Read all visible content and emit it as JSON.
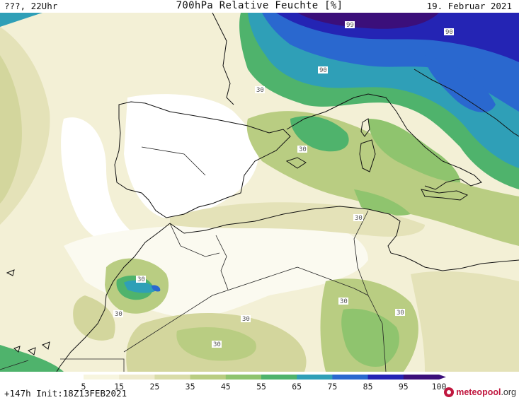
{
  "header": {
    "left": "???, 22Uhr",
    "title": "700hPa Relative Feuchte [%]",
    "date": "19. Februar 2021"
  },
  "footer": {
    "run_info": "+147h Init:18Z13FEB2021",
    "brand_part1": "meteo",
    "brand_part2": "pool",
    "brand_part3": ".org"
  },
  "colorbar": {
    "labels": [
      "5",
      "15",
      "25",
      "35",
      "45",
      "55",
      "65",
      "75",
      "85",
      "95",
      "100"
    ],
    "colors": [
      "#ffffff",
      "#f7f5df",
      "#eeeacc",
      "#d9dca9",
      "#b9cd82",
      "#8fc46e",
      "#4fb36c",
      "#2f9fb7",
      "#2a68cf",
      "#2424b4",
      "#3b0f7a"
    ]
  },
  "contour_labels": [
    "99",
    "90",
    "90",
    "30",
    "30",
    "30",
    "30",
    "30",
    "30",
    "30",
    "30",
    "30"
  ]
}
